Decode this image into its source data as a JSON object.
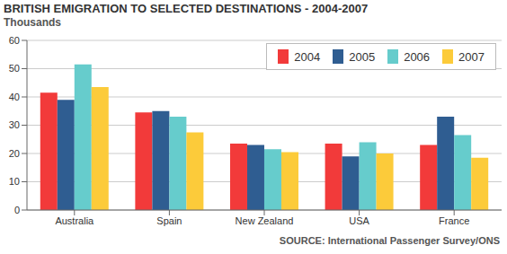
{
  "chart_data": {
    "type": "bar",
    "title": "BRITISH EMIGRATION TO SELECTED DESTINATIONS - 2004-2007",
    "subtitle": "Thousands",
    "source": "SOURCE: International Passenger Survey/ONS",
    "categories": [
      "Australia",
      "Spain",
      "New Zealand",
      "USA",
      "France"
    ],
    "series": [
      {
        "name": "2004",
        "color": "#f23a3a",
        "values": [
          41.5,
          34.5,
          23.5,
          23.5,
          23
        ]
      },
      {
        "name": "2005",
        "color": "#2f5d91",
        "values": [
          39,
          35,
          23,
          19,
          33
        ]
      },
      {
        "name": "2006",
        "color": "#66cccc",
        "values": [
          51.5,
          33,
          21.5,
          24,
          26.5
        ]
      },
      {
        "name": "2007",
        "color": "#fccb3a",
        "values": [
          43.5,
          27.5,
          20.5,
          20,
          18.5
        ]
      }
    ],
    "ylim": [
      0,
      60
    ],
    "yticks": [
      0,
      10,
      20,
      30,
      40,
      50,
      60
    ],
    "grid": true,
    "legend": "top-right"
  }
}
